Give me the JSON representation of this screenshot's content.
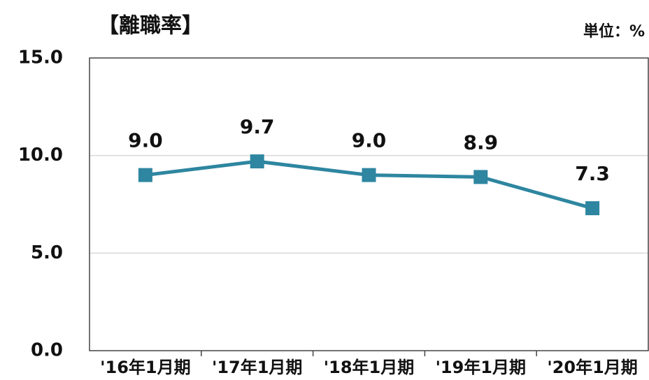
{
  "chart_data": {
    "type": "line",
    "title": "【離職率】",
    "unit_label": "単位：%",
    "categories": [
      "'16年1月期",
      "'17年1月期",
      "'18年1月期",
      "'19年1月期",
      "'20年1月期"
    ],
    "series": [
      {
        "name": "離職率",
        "color": "#2e86a0",
        "values": [
          9.0,
          9.7,
          9.0,
          8.9,
          7.3
        ],
        "value_labels": [
          "9.0",
          "9.7",
          "9.0",
          "8.9",
          "7.3"
        ]
      }
    ],
    "ylim": [
      0,
      15
    ],
    "yticks": [
      {
        "value": 0,
        "label": "0.0"
      },
      {
        "value": 5,
        "label": "5.0"
      },
      {
        "value": 10,
        "label": "10.0"
      },
      {
        "value": 15,
        "label": "15.0"
      }
    ],
    "grid": true,
    "legend": false
  }
}
